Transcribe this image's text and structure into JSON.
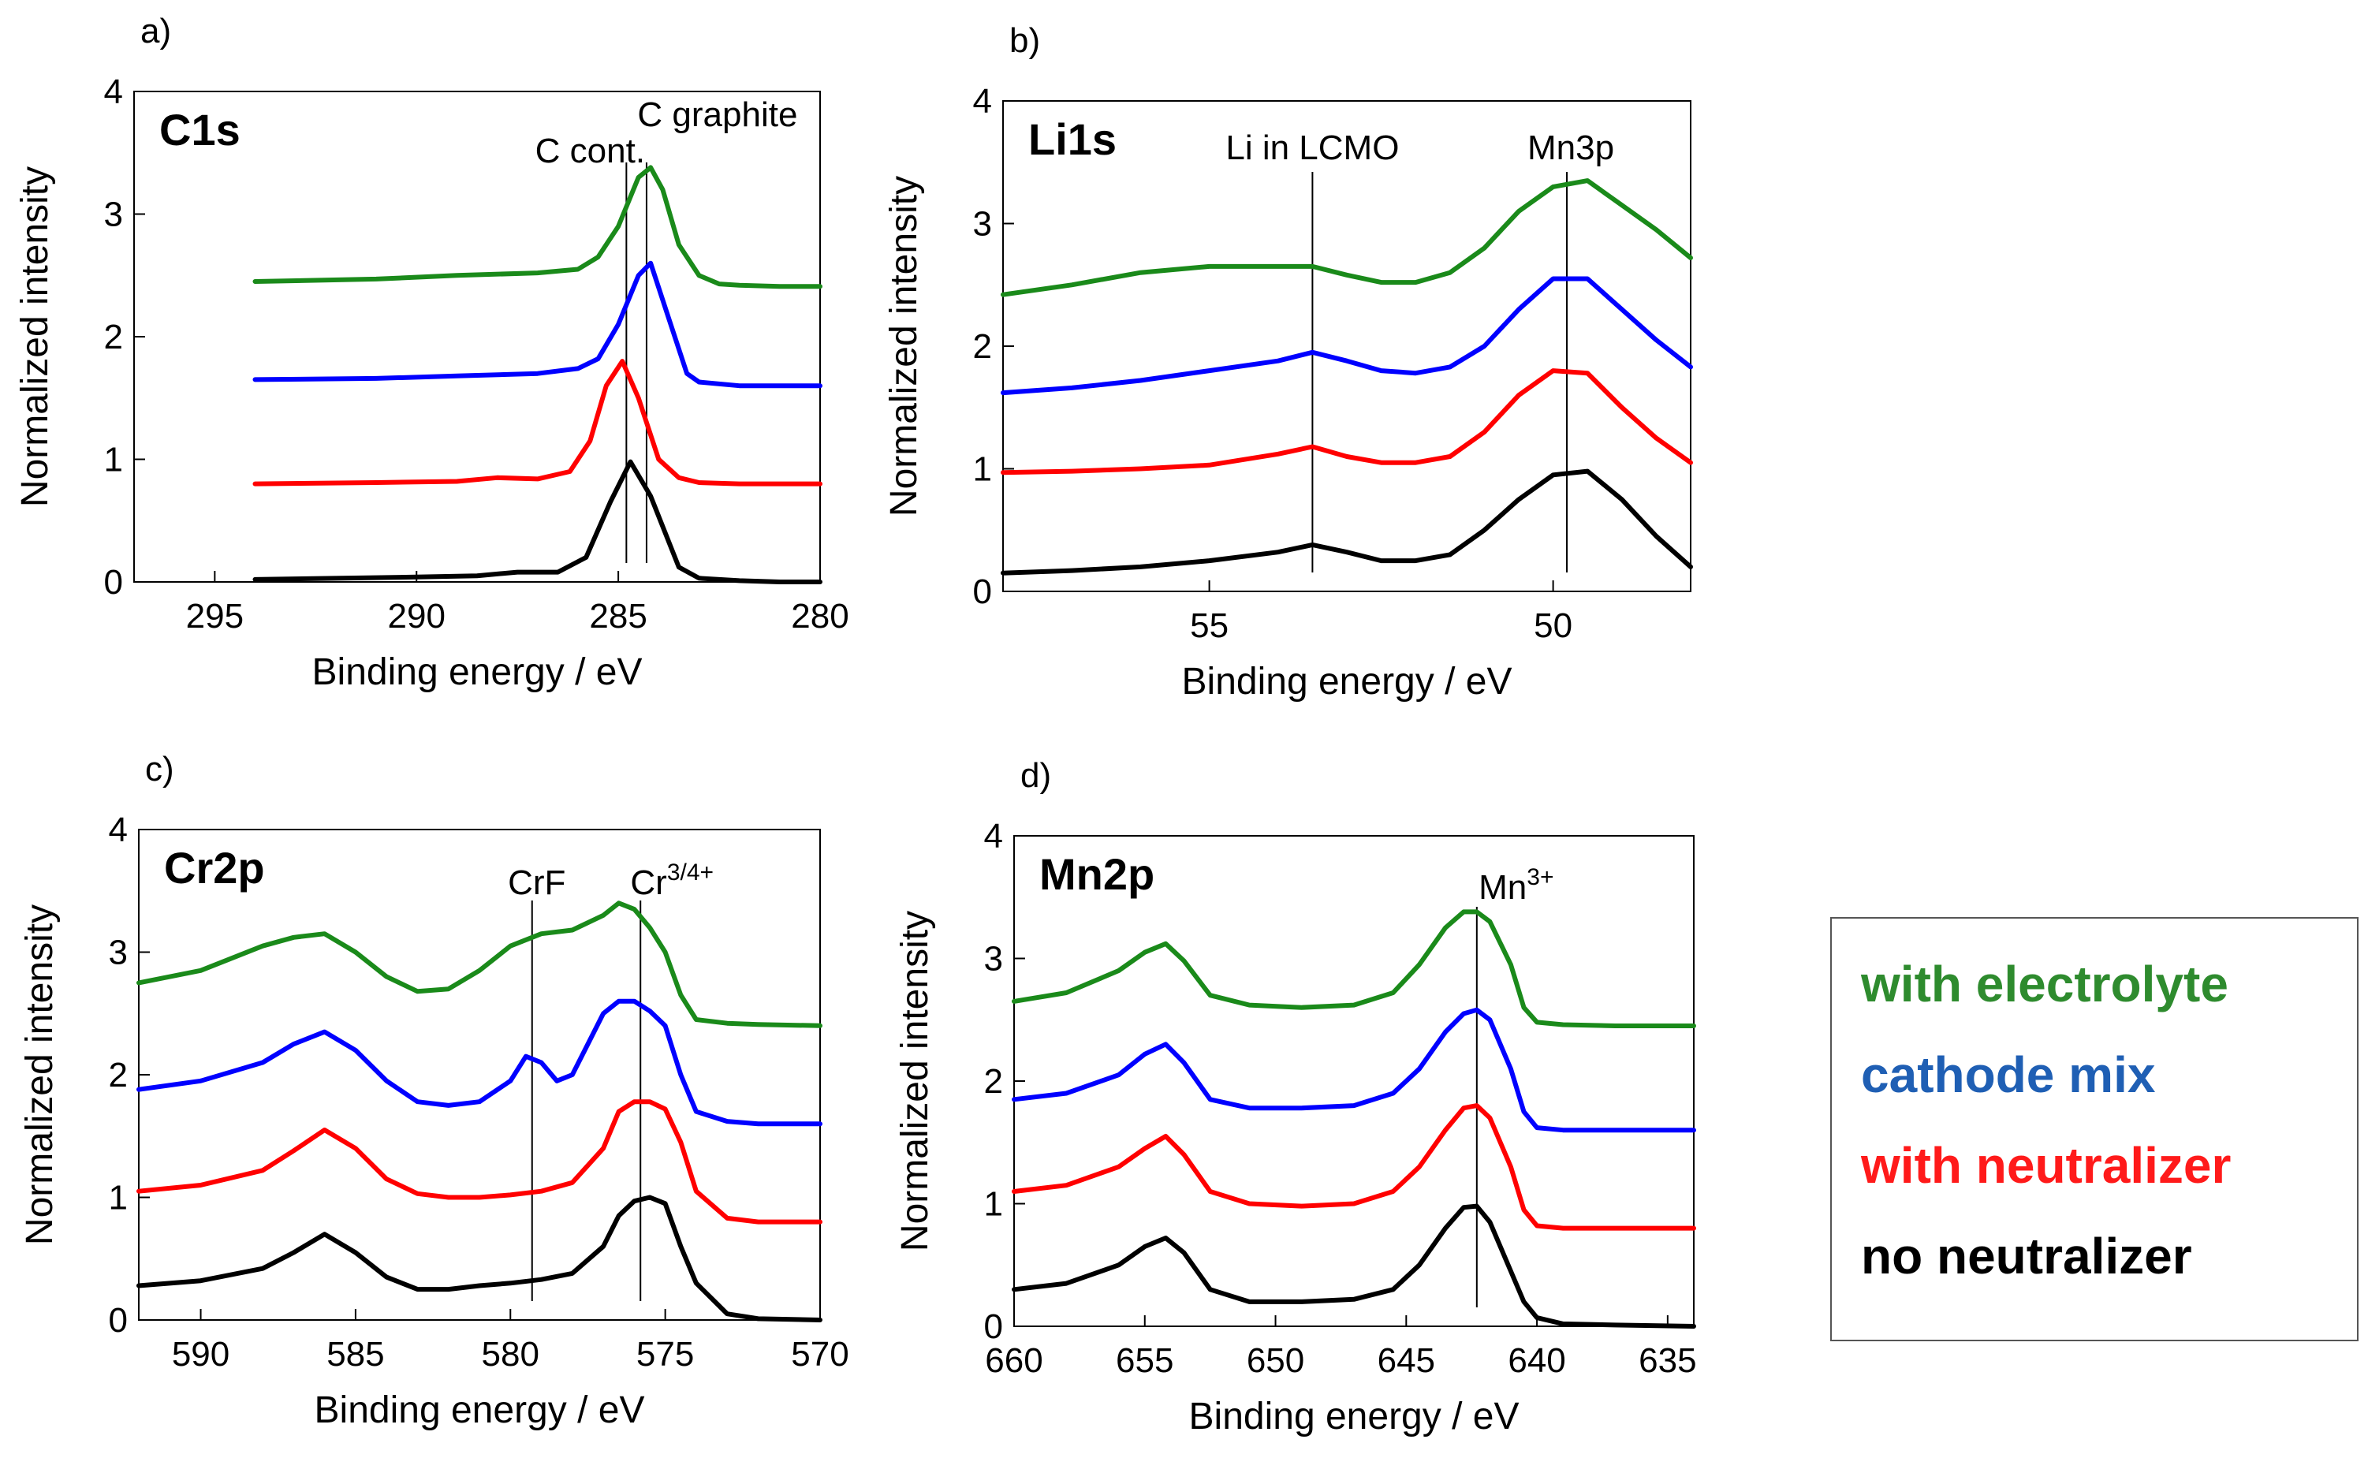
{
  "chart_data": [
    {
      "id": "a",
      "type": "line",
      "panel_letter": "a)",
      "element_label": "C1s",
      "xlabel": "Binding energy / eV",
      "ylabel": "Normalized intensity",
      "xlim": [
        297,
        280
      ],
      "ylim": [
        0,
        4
      ],
      "xticks": [
        295,
        290,
        285,
        280
      ],
      "yticks": [
        0,
        1,
        2,
        3,
        4
      ],
      "annotations": [
        {
          "text": "C cont.",
          "x": 284.8
        },
        {
          "text": "C graphite",
          "x": 284.3
        }
      ],
      "series": [
        {
          "name": "no neutralizer",
          "color": "#000000",
          "x": [
            294,
            290,
            288.5,
            287.5,
            286.5,
            285.8,
            285.2,
            284.7,
            284.2,
            283.5,
            283,
            282,
            281,
            280
          ],
          "y": [
            0.02,
            0.04,
            0.05,
            0.08,
            0.08,
            0.2,
            0.65,
            0.98,
            0.7,
            0.12,
            0.03,
            0.01,
            0,
            0
          ]
        },
        {
          "name": "with neutralizer",
          "color": "#ff0000",
          "x": [
            294,
            291,
            289,
            288,
            287,
            286.2,
            285.7,
            285.3,
            284.9,
            284.5,
            284,
            283.5,
            283,
            282,
            281,
            280
          ],
          "y": [
            0.8,
            0.81,
            0.82,
            0.85,
            0.84,
            0.9,
            1.15,
            1.6,
            1.8,
            1.5,
            1.0,
            0.85,
            0.81,
            0.8,
            0.8,
            0.8
          ]
        },
        {
          "name": "cathode mix",
          "color": "#0000ff",
          "x": [
            294,
            291,
            289,
            287,
            286,
            285.5,
            285,
            284.5,
            284.2,
            283.8,
            283.3,
            283,
            282,
            281,
            280
          ],
          "y": [
            1.65,
            1.66,
            1.68,
            1.7,
            1.74,
            1.82,
            2.1,
            2.5,
            2.6,
            2.2,
            1.7,
            1.63,
            1.6,
            1.6,
            1.6
          ]
        },
        {
          "name": "with electrolyte",
          "color": "#1a8a1a",
          "x": [
            294,
            291,
            289,
            287,
            286,
            285.5,
            285,
            284.5,
            284.2,
            283.9,
            283.5,
            283,
            282.5,
            282,
            281,
            280
          ],
          "y": [
            2.45,
            2.47,
            2.5,
            2.52,
            2.55,
            2.65,
            2.9,
            3.3,
            3.38,
            3.2,
            2.75,
            2.5,
            2.43,
            2.42,
            2.41,
            2.41
          ]
        }
      ]
    },
    {
      "id": "b",
      "type": "line",
      "panel_letter": "b)",
      "element_label": "Li1s",
      "xlabel": "Binding energy / eV",
      "ylabel": "Normalized intensity",
      "xlim": [
        58,
        48
      ],
      "ylim": [
        0,
        4
      ],
      "xticks": [
        55,
        50
      ],
      "yticks": [
        0,
        1,
        2,
        3,
        4
      ],
      "annotations": [
        {
          "text": "Li in LCMO",
          "x": 53.5
        },
        {
          "text": "Mn3p",
          "x": 49.8
        }
      ],
      "series": [
        {
          "name": "no neutralizer",
          "color": "#000000",
          "x": [
            58,
            57,
            56,
            55,
            54,
            53.5,
            53,
            52.5,
            52,
            51.5,
            51,
            50.5,
            50,
            49.5,
            49,
            48.5,
            48
          ],
          "y": [
            0.15,
            0.17,
            0.2,
            0.25,
            0.32,
            0.38,
            0.32,
            0.25,
            0.25,
            0.3,
            0.5,
            0.75,
            0.95,
            0.98,
            0.75,
            0.45,
            0.2
          ]
        },
        {
          "name": "with neutralizer",
          "color": "#ff0000",
          "x": [
            58,
            57,
            56,
            55,
            54,
            53.5,
            53,
            52.5,
            52,
            51.5,
            51,
            50.5,
            50,
            49.5,
            49,
            48.5,
            48
          ],
          "y": [
            0.97,
            0.98,
            1.0,
            1.03,
            1.12,
            1.18,
            1.1,
            1.05,
            1.05,
            1.1,
            1.3,
            1.6,
            1.8,
            1.78,
            1.5,
            1.25,
            1.05
          ]
        },
        {
          "name": "cathode mix",
          "color": "#0000ff",
          "x": [
            58,
            57,
            56,
            55,
            54,
            53.5,
            53,
            52.5,
            52,
            51.5,
            51,
            50.5,
            50,
            49.5,
            49,
            48.5,
            48
          ],
          "y": [
            1.62,
            1.66,
            1.72,
            1.8,
            1.88,
            1.95,
            1.88,
            1.8,
            1.78,
            1.83,
            2.0,
            2.3,
            2.55,
            2.55,
            2.3,
            2.05,
            1.83
          ]
        },
        {
          "name": "with electrolyte",
          "color": "#1a8a1a",
          "x": [
            58,
            57,
            56,
            55,
            54,
            53.5,
            53,
            52.5,
            52,
            51.5,
            51,
            50.5,
            50,
            49.5,
            49,
            48.5,
            48
          ],
          "y": [
            2.42,
            2.5,
            2.6,
            2.65,
            2.65,
            2.65,
            2.58,
            2.52,
            2.52,
            2.6,
            2.8,
            3.1,
            3.3,
            3.35,
            3.15,
            2.95,
            2.72
          ]
        }
      ]
    },
    {
      "id": "c",
      "type": "line",
      "panel_letter": "c)",
      "element_label": "Cr2p",
      "xlabel": "Binding energy / eV",
      "ylabel": "Normalized intensity",
      "xlim": [
        592,
        570
      ],
      "ylim": [
        0,
        4
      ],
      "xticks": [
        590,
        585,
        580,
        575,
        570
      ],
      "yticks": [
        0,
        1,
        2,
        3,
        4
      ],
      "annotations": [
        {
          "text": "CrF",
          "x": 579.3
        },
        {
          "text": "Cr",
          "sup": "3/4+",
          "x": 575.8
        }
      ],
      "series": [
        {
          "name": "no neutralizer",
          "color": "#000000",
          "x": [
            592,
            590,
            588,
            587,
            586,
            585,
            584,
            583,
            582,
            581,
            580,
            579,
            578,
            577,
            576.5,
            576,
            575.5,
            575,
            574.5,
            574,
            573,
            572,
            570
          ],
          "y": [
            0.28,
            0.32,
            0.42,
            0.55,
            0.7,
            0.55,
            0.35,
            0.25,
            0.25,
            0.28,
            0.3,
            0.33,
            0.38,
            0.6,
            0.85,
            0.97,
            1.0,
            0.95,
            0.6,
            0.3,
            0.05,
            0.01,
            0
          ]
        },
        {
          "name": "with neutralizer",
          "color": "#ff0000",
          "x": [
            592,
            590,
            588,
            587,
            586,
            585,
            584,
            583,
            582,
            581,
            580,
            579,
            578,
            577,
            576.5,
            576,
            575.5,
            575,
            574.5,
            574,
            573,
            572,
            570
          ],
          "y": [
            1.05,
            1.1,
            1.22,
            1.38,
            1.55,
            1.4,
            1.15,
            1.03,
            1.0,
            1.0,
            1.02,
            1.05,
            1.12,
            1.4,
            1.7,
            1.78,
            1.78,
            1.72,
            1.45,
            1.05,
            0.83,
            0.8,
            0.8
          ]
        },
        {
          "name": "cathode mix",
          "color": "#0000ff",
          "x": [
            592,
            590,
            588,
            587,
            586,
            585,
            584,
            583,
            582,
            581,
            580,
            579.5,
            579,
            578.5,
            578,
            577.5,
            577,
            576.5,
            576,
            575.5,
            575,
            574.5,
            574,
            573,
            572,
            570
          ],
          "y": [
            1.88,
            1.95,
            2.1,
            2.25,
            2.35,
            2.2,
            1.95,
            1.78,
            1.75,
            1.78,
            1.95,
            2.15,
            2.1,
            1.95,
            2.0,
            2.25,
            2.5,
            2.6,
            2.6,
            2.52,
            2.4,
            2.0,
            1.7,
            1.62,
            1.6,
            1.6
          ]
        },
        {
          "name": "with electrolyte",
          "color": "#1a8a1a",
          "x": [
            592,
            590,
            588,
            587,
            586,
            585,
            584,
            583,
            582,
            581,
            580,
            579,
            578,
            577,
            576.5,
            576,
            575.5,
            575,
            574.5,
            574,
            573,
            572,
            570
          ],
          "y": [
            2.75,
            2.85,
            3.05,
            3.12,
            3.15,
            3.0,
            2.8,
            2.68,
            2.7,
            2.85,
            3.05,
            3.15,
            3.18,
            3.3,
            3.4,
            3.35,
            3.2,
            3.0,
            2.65,
            2.45,
            2.42,
            2.41,
            2.4
          ]
        }
      ]
    },
    {
      "id": "d",
      "type": "line",
      "panel_letter": "d)",
      "element_label": "Mn2p",
      "xlabel": "Binding energy / eV",
      "ylabel": "Normalized intensity",
      "xlim": [
        660,
        634
      ],
      "ylim": [
        0,
        4
      ],
      "xticks": [
        660,
        655,
        650,
        645,
        640,
        635
      ],
      "yticks": [
        0,
        1,
        2,
        3,
        4
      ],
      "annotations": [
        {
          "text": "Mn",
          "sup": "3+",
          "x": 642.3
        }
      ],
      "series": [
        {
          "name": "no neutralizer",
          "color": "#000000",
          "x": [
            660,
            658,
            656,
            655,
            654.2,
            653.5,
            652.5,
            651,
            649,
            647,
            645.5,
            644.5,
            643.5,
            642.8,
            642.3,
            641.8,
            641,
            640.5,
            640,
            639,
            637,
            634
          ],
          "y": [
            0.3,
            0.35,
            0.5,
            0.65,
            0.72,
            0.6,
            0.3,
            0.2,
            0.2,
            0.22,
            0.3,
            0.5,
            0.8,
            0.97,
            0.98,
            0.85,
            0.45,
            0.2,
            0.07,
            0.02,
            0.01,
            0
          ]
        },
        {
          "name": "with neutralizer",
          "color": "#ff0000",
          "x": [
            660,
            658,
            656,
            655,
            654.2,
            653.5,
            652.5,
            651,
            649,
            647,
            645.5,
            644.5,
            643.5,
            642.8,
            642.3,
            641.8,
            641,
            640.5,
            640,
            639,
            637,
            634
          ],
          "y": [
            1.1,
            1.15,
            1.3,
            1.45,
            1.55,
            1.4,
            1.1,
            1.0,
            0.98,
            1.0,
            1.1,
            1.3,
            1.6,
            1.78,
            1.8,
            1.7,
            1.3,
            0.95,
            0.82,
            0.8,
            0.8,
            0.8
          ]
        },
        {
          "name": "cathode mix",
          "color": "#0000ff",
          "x": [
            660,
            658,
            656,
            655,
            654.2,
            653.5,
            652.5,
            651,
            649,
            647,
            645.5,
            644.5,
            643.5,
            642.8,
            642.3,
            641.8,
            641,
            640.5,
            640,
            639,
            637,
            634
          ],
          "y": [
            1.85,
            1.9,
            2.05,
            2.22,
            2.3,
            2.15,
            1.85,
            1.78,
            1.78,
            1.8,
            1.9,
            2.1,
            2.4,
            2.55,
            2.58,
            2.5,
            2.1,
            1.75,
            1.62,
            1.6,
            1.6,
            1.6
          ]
        },
        {
          "name": "with electrolyte",
          "color": "#1a8a1a",
          "x": [
            660,
            658,
            656,
            655,
            654.2,
            653.5,
            652.5,
            651,
            649,
            647,
            645.5,
            644.5,
            643.5,
            642.8,
            642.3,
            641.8,
            641,
            640.5,
            640,
            639,
            637,
            634
          ],
          "y": [
            2.65,
            2.72,
            2.9,
            3.05,
            3.12,
            2.98,
            2.7,
            2.62,
            2.6,
            2.62,
            2.72,
            2.95,
            3.25,
            3.38,
            3.38,
            3.3,
            2.95,
            2.6,
            2.48,
            2.46,
            2.45,
            2.45
          ]
        }
      ]
    }
  ],
  "legend": {
    "items": [
      {
        "label": "with electrolyte",
        "color": "#2e8b2e"
      },
      {
        "label": "cathode mix",
        "color": "#1f5fb4"
      },
      {
        "label": "with neutralizer",
        "color": "#ff1a1a"
      },
      {
        "label": "no neutralizer",
        "color": "#000000"
      }
    ]
  }
}
